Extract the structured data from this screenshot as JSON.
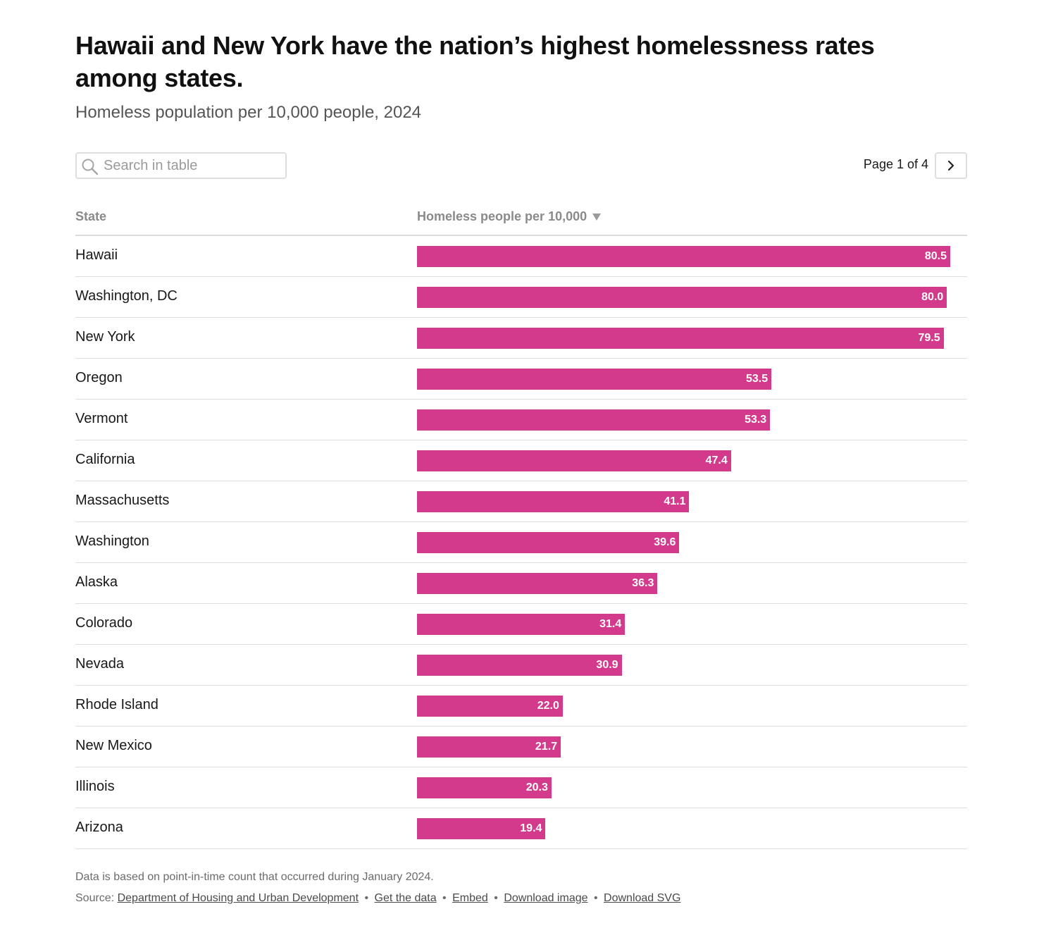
{
  "title": "Hawaii and New York have the nation’s highest homelessness rates among states.",
  "subtitle": "Homeless population per 10,000 people, 2024",
  "search": {
    "placeholder": "Search in table",
    "value": "",
    "icon": "search-icon"
  },
  "pager": {
    "label": "Page 1 of 4",
    "next_icon": "chevron-right-icon"
  },
  "table": {
    "columns": [
      "State",
      "Homeless people per 10,000"
    ],
    "sort_indicator": "sort-descending-icon"
  },
  "colors": {
    "bar": "#d33a8b",
    "rule": "#dddddd",
    "header": "#8a8a8a"
  },
  "chart_data": {
    "type": "bar",
    "orientation": "horizontal",
    "xlim": [
      0,
      80.5
    ],
    "categories": [
      "Hawaii",
      "Washington, DC",
      "New York",
      "Oregon",
      "Vermont",
      "California",
      "Massachusetts",
      "Washington",
      "Alaska",
      "Colorado",
      "Nevada",
      "Rhode Island",
      "New Mexico",
      "Illinois",
      "Arizona"
    ],
    "values": [
      80.5,
      80.0,
      79.5,
      53.5,
      53.3,
      47.4,
      41.1,
      39.6,
      36.3,
      31.4,
      30.9,
      22.0,
      21.7,
      20.3,
      19.4
    ],
    "value_labels": [
      "80.5",
      "80.0",
      "79.5",
      "53.5",
      "53.3",
      "47.4",
      "41.1",
      "39.6",
      "36.3",
      "31.4",
      "30.9",
      "22.0",
      "21.7",
      "20.3",
      "19.4"
    ]
  },
  "footer": {
    "note": "Data is based on point-in-time count that occurred during January 2024.",
    "source_prefix": "Source:",
    "source_link": "Department of Housing and Urban Development",
    "separator": "•",
    "links": [
      "Get the data",
      "Embed",
      "Download image",
      "Download SVG"
    ]
  }
}
